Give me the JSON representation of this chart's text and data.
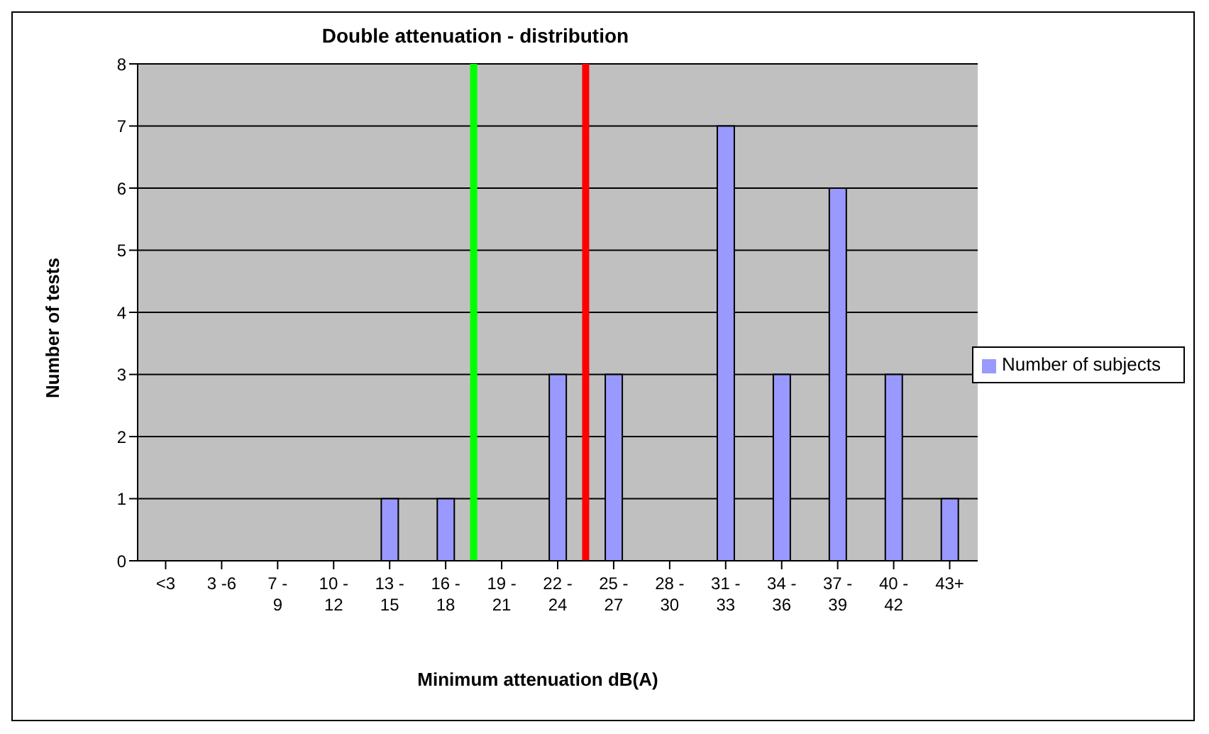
{
  "chart_data": {
    "type": "bar",
    "title": "Double attenuation - distribution",
    "xlabel": "Minimum attenuation dB(A)",
    "ylabel": "Number of tests",
    "categories": [
      "<3",
      "3 -6",
      "7 - 9",
      "10 - 12",
      "13 - 15",
      "16 - 18",
      "19 - 21",
      "22 - 24",
      "25 - 27",
      "28 - 30",
      "31 - 33",
      "34 - 36",
      "37 - 39",
      "40 - 42",
      "43+"
    ],
    "series": [
      {
        "name": "Number of subjects",
        "color": "#9999ff",
        "values": [
          0,
          0,
          0,
          0,
          1,
          1,
          0,
          3,
          3,
          0,
          7,
          3,
          6,
          3,
          1
        ]
      }
    ],
    "ylim": [
      0,
      8
    ],
    "yticks": [
      0,
      1,
      2,
      3,
      4,
      5,
      6,
      7,
      8
    ],
    "grid": "y",
    "legend": "right",
    "ref_lines": [
      {
        "axis": "x",
        "value": "19 - 21",
        "color": "#00ff00"
      },
      {
        "axis": "x",
        "value": "25 - 27",
        "color": "#ff0000"
      }
    ]
  }
}
